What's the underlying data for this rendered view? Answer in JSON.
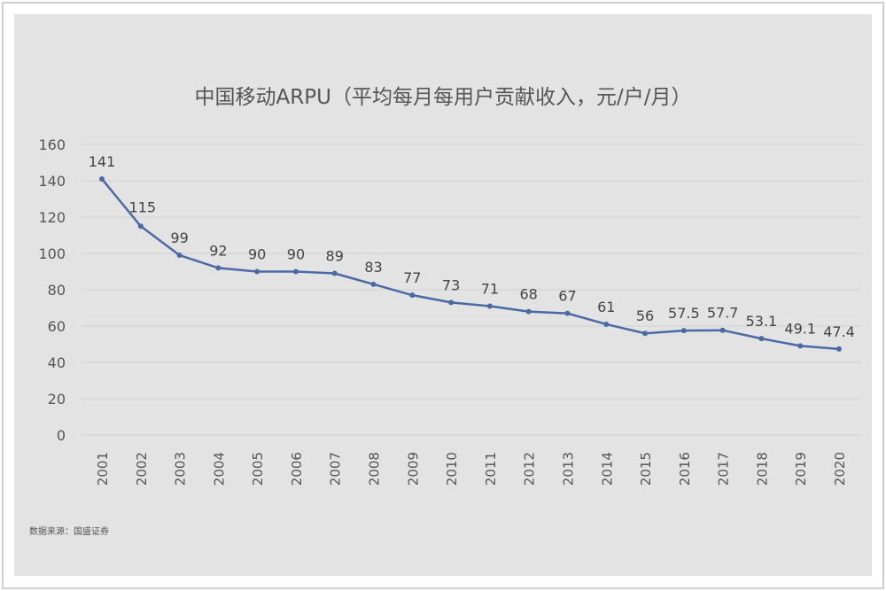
{
  "chart_data": {
    "type": "line",
    "title": "中国移动ARPU（平均每月每用户贡献收入，元/户/月）",
    "categories": [
      "2001",
      "2002",
      "2003",
      "2004",
      "2005",
      "2006",
      "2007",
      "2008",
      "2009",
      "2010",
      "2011",
      "2012",
      "2013",
      "2014",
      "2015",
      "2016",
      "2017",
      "2018",
      "2019",
      "2020"
    ],
    "values": [
      141,
      115,
      99,
      92,
      90,
      90,
      89,
      83,
      77,
      73,
      71,
      68,
      67,
      61,
      56,
      57.5,
      57.7,
      53.1,
      49.1,
      47.4
    ],
    "data_labels": [
      "141",
      "115",
      "99",
      "92",
      "90",
      "90",
      "89",
      "83",
      "77",
      "73",
      "71",
      "68",
      "67",
      "61",
      "56",
      "57.5",
      "57.7",
      "53.1",
      "49.1",
      "47.4"
    ],
    "ylim": [
      0,
      160
    ],
    "yticks": [
      0,
      20,
      40,
      60,
      80,
      100,
      120,
      140,
      160
    ],
    "grid": true,
    "line_color": "#4a6aa5",
    "source": "数据来源：国盛证券"
  }
}
